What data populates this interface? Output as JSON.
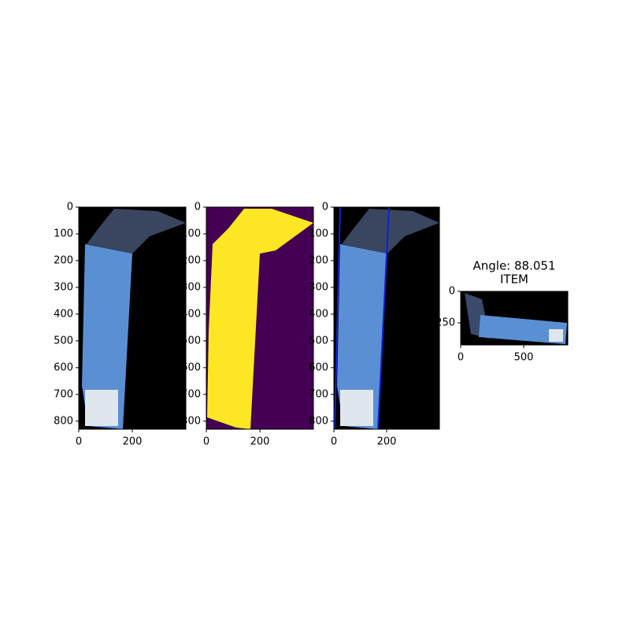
{
  "chart_data": [
    {
      "type": "image",
      "xlim": [
        0,
        400
      ],
      "ylim": [
        830,
        0
      ],
      "xticks": [
        0,
        200
      ],
      "yticks": [
        0,
        100,
        200,
        300,
        400,
        500,
        600,
        700,
        800
      ]
    },
    {
      "type": "image",
      "xlim": [
        0,
        400
      ],
      "ylim": [
        830,
        0
      ],
      "xticks": [
        0,
        200
      ],
      "yticks": [
        0,
        100,
        200,
        300,
        400,
        500,
        600,
        700,
        800
      ]
    },
    {
      "type": "image",
      "xlim": [
        0,
        400
      ],
      "ylim": [
        830,
        0
      ],
      "xticks": [
        0,
        200
      ],
      "yticks": [
        0,
        100,
        200,
        300,
        400,
        500,
        600,
        700,
        800
      ]
    },
    {
      "type": "image",
      "title": [
        "Angle: 88.051",
        "ITEM"
      ],
      "xlim": [
        0,
        850
      ],
      "ylim": [
        425,
        0
      ],
      "xticks": [
        0,
        500
      ],
      "yticks": [
        0,
        250
      ]
    }
  ]
}
